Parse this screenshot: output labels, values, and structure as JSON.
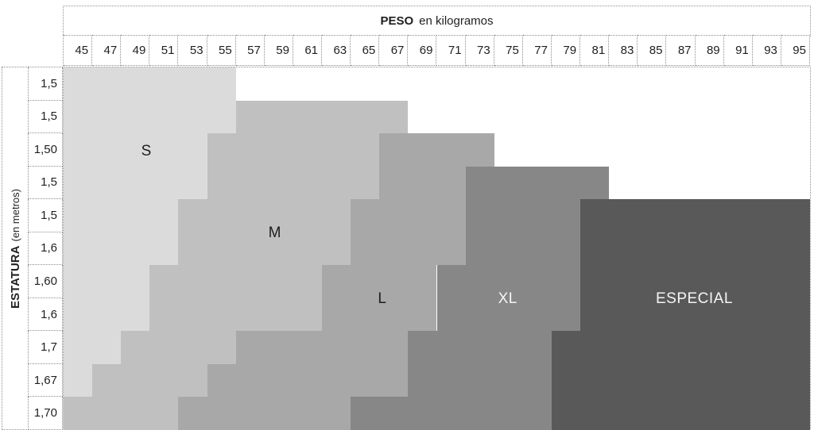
{
  "title": {
    "bold": "PESO",
    "rest": "en kilogramos"
  },
  "y_axis": {
    "bold": "ESTATURA",
    "rest": "(en metros)"
  },
  "chart_data": {
    "type": "heatmap",
    "title": "PESO en kilogramos",
    "xlabel": "PESO en kilogramos",
    "ylabel": "ESTATURA (en metros)",
    "grid": "dotted",
    "weights": [
      45,
      47,
      49,
      51,
      53,
      55,
      57,
      59,
      61,
      63,
      65,
      67,
      69,
      71,
      73,
      75,
      77,
      79,
      81,
      83,
      85,
      87,
      89,
      91,
      93,
      95
    ],
    "heights": [
      "1,5",
      "1,5",
      "1,50",
      "1,5",
      "1,5",
      "1,6",
      "1,60",
      "1,6",
      "1,7",
      "1,67",
      "1,70"
    ],
    "regions": [
      {
        "name": "S",
        "color": "#DBDBDB",
        "text_color": "#1f1f1f",
        "label_pos": {
          "x_pct": 11.1,
          "y_pct": 23.2
        }
      },
      {
        "name": "M",
        "color": "#C0C0C0",
        "text_color": "#1f1f1f",
        "label_pos": {
          "x_pct": 28.3,
          "y_pct": 45.7
        }
      },
      {
        "name": "L",
        "color": "#A8A8A8",
        "text_color": "#1f1f1f",
        "label_pos": {
          "x_pct": 42.7,
          "y_pct": 64.0
        }
      },
      {
        "name": "XL",
        "color": "#878787",
        "text_color": "#f5f5f5",
        "label_pos": {
          "x_pct": 59.5,
          "y_pct": 64.0
        }
      },
      {
        "name": "ESPECIAL",
        "color": "#595959",
        "text_color": "#f5f5f5",
        "label_pos": {
          "x_pct": 84.5,
          "y_pct": 64.0
        }
      }
    ],
    "rows": [
      {
        "height": "1,5",
        "spans": {
          "S": [
            0,
            6
          ]
        }
      },
      {
        "height": "1,5",
        "spans": {
          "S": [
            0,
            6
          ],
          "M": [
            6,
            12
          ]
        }
      },
      {
        "height": "1,50",
        "spans": {
          "S": [
            0,
            5
          ],
          "M": [
            5,
            11
          ],
          "L": [
            11,
            15
          ]
        }
      },
      {
        "height": "1,5",
        "spans": {
          "S": [
            0,
            5
          ],
          "M": [
            5,
            11
          ],
          "L": [
            11,
            14
          ],
          "XL": [
            14,
            19
          ]
        }
      },
      {
        "height": "1,5",
        "spans": {
          "S": [
            0,
            4
          ],
          "M": [
            4,
            10
          ],
          "L": [
            10,
            14
          ],
          "XL": [
            14,
            18
          ],
          "ESPECIAL": [
            18,
            26
          ]
        }
      },
      {
        "height": "1,6",
        "spans": {
          "S": [
            0,
            4
          ],
          "M": [
            4,
            10
          ],
          "L": [
            10,
            14
          ],
          "XL": [
            14,
            18
          ],
          "ESPECIAL": [
            18,
            26
          ]
        }
      },
      {
        "height": "1,60",
        "spans": {
          "S": [
            0,
            3
          ],
          "M": [
            3,
            9
          ],
          "L": [
            9,
            13
          ],
          "XL": [
            13,
            18
          ],
          "ESPECIAL": [
            18,
            26
          ]
        }
      },
      {
        "height": "1,6",
        "spans": {
          "S": [
            0,
            3
          ],
          "M": [
            3,
            9
          ],
          "L": [
            9,
            13
          ],
          "XL": [
            13,
            18
          ],
          "ESPECIAL": [
            18,
            26
          ]
        }
      },
      {
        "height": "1,7",
        "spans": {
          "S": [
            0,
            2
          ],
          "M": [
            2,
            6
          ],
          "L": [
            6,
            12
          ],
          "XL": [
            12,
            17
          ],
          "ESPECIAL": [
            17,
            26
          ]
        }
      },
      {
        "height": "1,67",
        "spans": {
          "S": [
            0,
            1
          ],
          "M": [
            1,
            5
          ],
          "L": [
            5,
            12
          ],
          "XL": [
            12,
            17
          ],
          "ESPECIAL": [
            17,
            26
          ]
        }
      },
      {
        "height": "1,70",
        "spans": {
          "M": [
            0,
            4
          ],
          "L": [
            4,
            10
          ],
          "XL": [
            10,
            17
          ],
          "ESPECIAL": [
            17,
            26
          ]
        }
      }
    ]
  }
}
